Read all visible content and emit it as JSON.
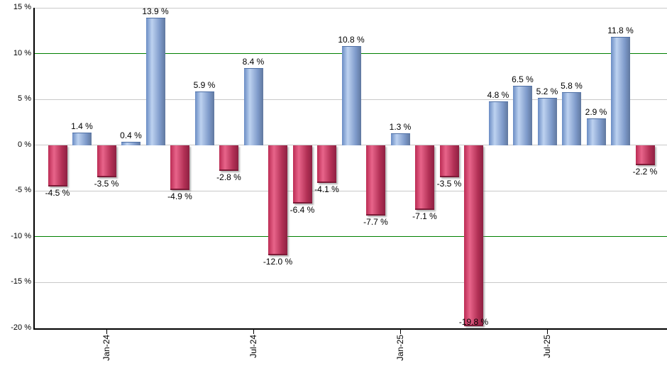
{
  "chart_data": {
    "type": "bar",
    "title": "",
    "xlabel": "",
    "ylabel": "",
    "ylim": [
      -20,
      15
    ],
    "grid": true,
    "legend": false,
    "values": [
      -4.5,
      1.4,
      -3.5,
      0.4,
      13.9,
      -4.9,
      5.9,
      -2.8,
      8.4,
      -12.0,
      -6.4,
      -4.1,
      10.8,
      -7.7,
      1.3,
      -7.1,
      -3.5,
      -19.8,
      4.8,
      6.5,
      5.2,
      5.8,
      2.9,
      11.8,
      -2.2
    ],
    "value_labels": [
      "-4.5 %",
      "1.4 %",
      "-3.5 %",
      "0.4 %",
      "13.9 %",
      "-4.9 %",
      "5.9 %",
      "-2.8 %",
      "8.4 %",
      "-12.0 %",
      "-6.4 %",
      "-4.1 %",
      "10.8 %",
      "-7.7 %",
      "1.3 %",
      "-7.1 %",
      "-3.5 %",
      "-19.8 %",
      "4.8 %",
      "6.5 %",
      "5.2 %",
      "5.8 %",
      "2.9 %",
      "11.8 %",
      "-2.2 %"
    ],
    "x_ticks": [
      {
        "label": "Jan-24",
        "index": 2
      },
      {
        "label": "Jul-24",
        "index": 8
      },
      {
        "label": "Jan-25",
        "index": 14
      },
      {
        "label": "Jul-25",
        "index": 20
      }
    ],
    "y_ticks": [
      {
        "label": "15 %",
        "value": 15
      },
      {
        "label": "10 %",
        "value": 10
      },
      {
        "label": "5 %",
        "value": 5
      },
      {
        "label": "0 %",
        "value": 0
      },
      {
        "label": "-5 %",
        "value": -5
      },
      {
        "label": "-10 %",
        "value": -10
      },
      {
        "label": "-15 %",
        "value": -15
      },
      {
        "label": "-20 %",
        "value": -20
      }
    ],
    "gridline_values": [
      15,
      5,
      0,
      -5,
      -15
    ],
    "reference_lines": [
      {
        "value": 10,
        "color": "#007f00"
      },
      {
        "value": -10,
        "color": "#007f00"
      }
    ],
    "colors": {
      "positive_bar_gradient": [
        "#6a8cc4",
        "#bdd2f0",
        "#7e9aca",
        "#60789f"
      ],
      "negative_bar_gradient": [
        "#bb2c54",
        "#e8648a",
        "#b23055",
        "#8e2042"
      ],
      "gridline": "#c9c9c9",
      "reference_line": "#007f00",
      "axis": "#000000",
      "text": "#000000",
      "background": "#ffffff"
    }
  }
}
